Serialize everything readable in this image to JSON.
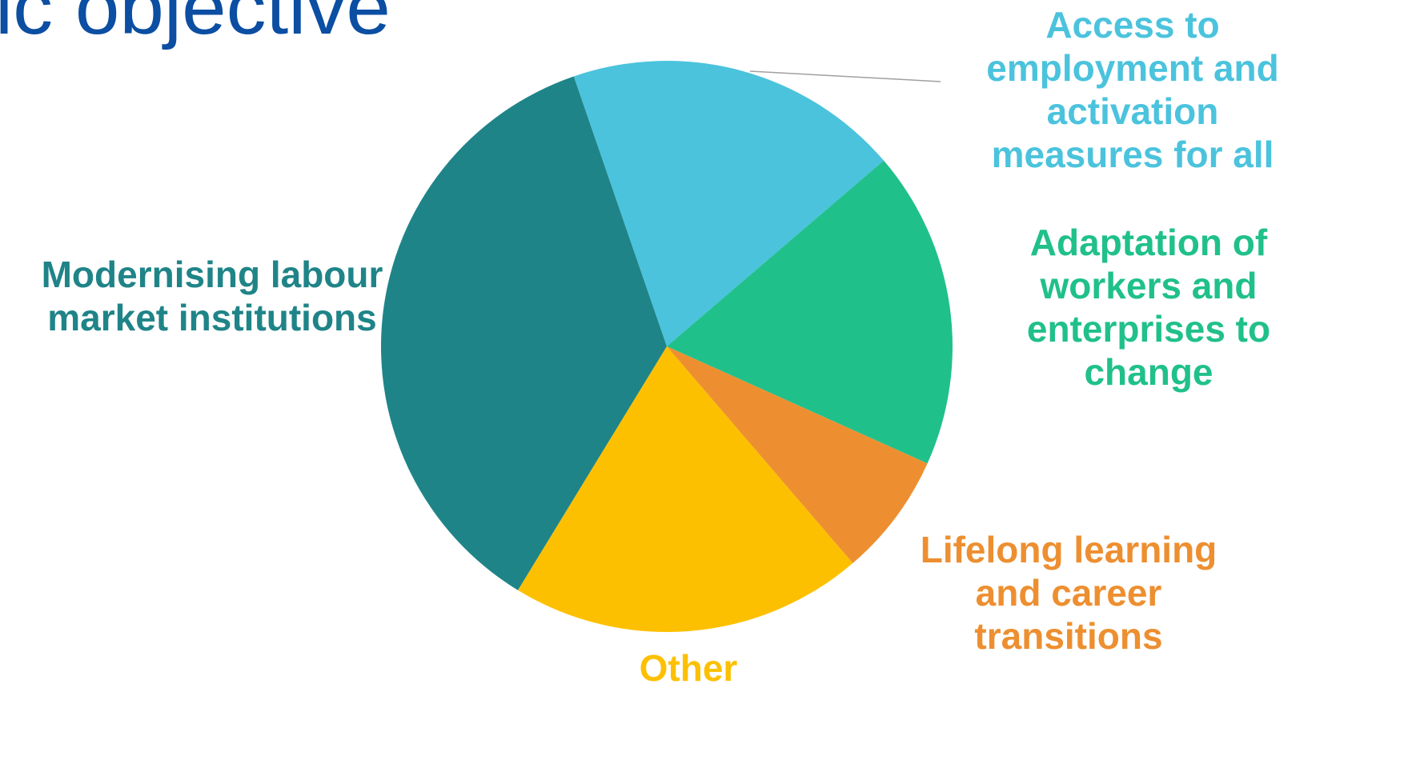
{
  "slide": {
    "title": "ic objective"
  },
  "chart_data": {
    "type": "pie",
    "slices": [
      {
        "label": "Access to\nemployment and\nactivation\nmeasures for all",
        "value": 19,
        "color": "#4bc3dd"
      },
      {
        "label": "Adaptation of\nworkers and\nenterprises to\nchange",
        "value": 18,
        "color": "#20c08a"
      },
      {
        "label": "Lifelong learning\nand career\ntransitions",
        "value": 7,
        "color": "#ed8f30"
      },
      {
        "label": "Other",
        "value": 20,
        "color": "#fdc000"
      },
      {
        "label": "Modernising labour\nmarket institutions",
        "value": 36,
        "color": "#1f8488"
      }
    ],
    "start_angle_deg": -19,
    "direction": "clockwise",
    "legend": "none",
    "data_labels": "category-name-outside",
    "leader_line_color": "#a0a0a0"
  }
}
